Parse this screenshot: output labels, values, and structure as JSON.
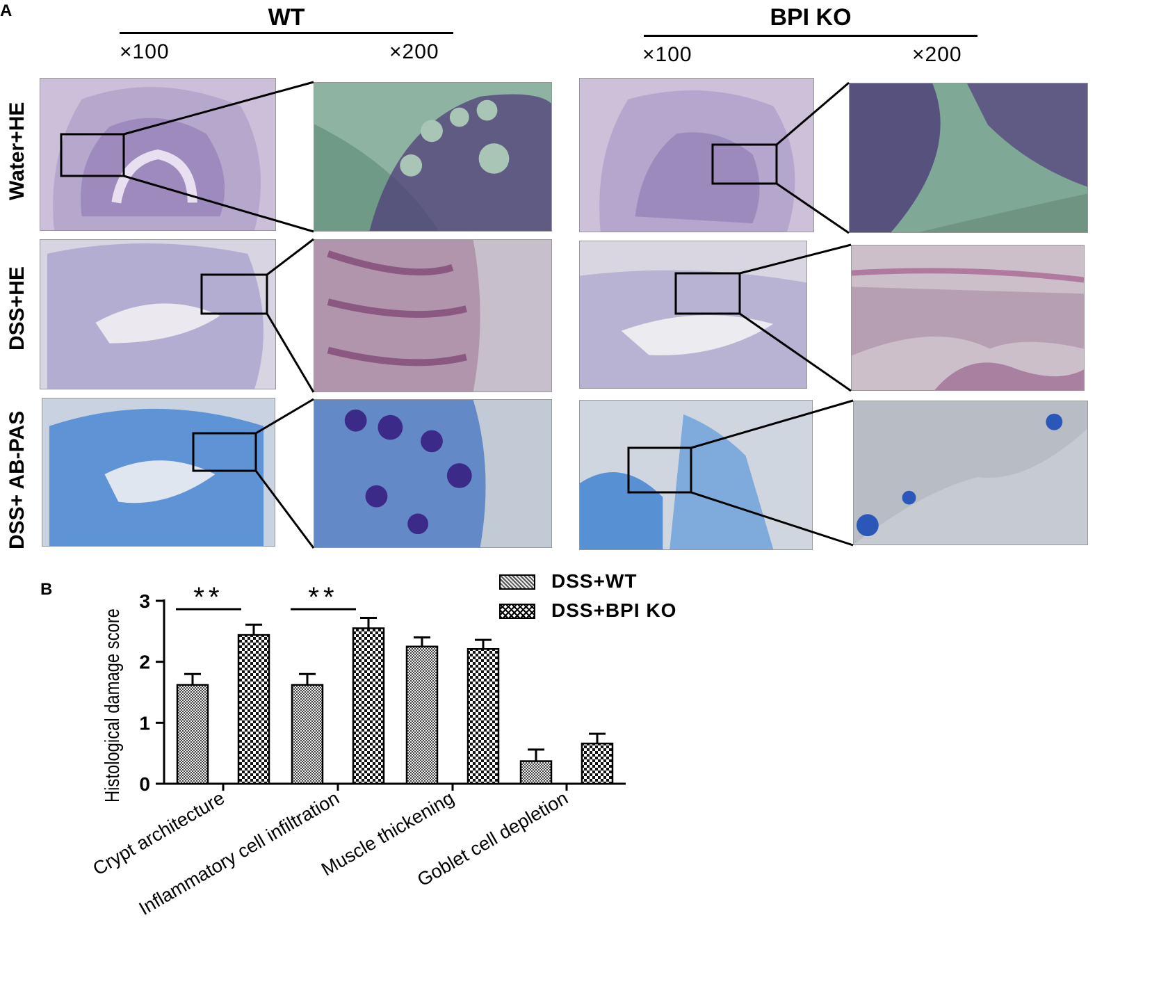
{
  "figure": {
    "panel_a_label": "A",
    "panel_b_label": "B",
    "groups": [
      {
        "title": "WT",
        "mag_low": "×100",
        "mag_high": "×200"
      },
      {
        "title": "BPI KO",
        "mag_low": "×100",
        "mag_high": "×200"
      }
    ],
    "rows": [
      "Water+HE",
      "DSS+HE",
      "DSS+ AB-PAS"
    ],
    "colors": {
      "he_low": "#c8bcd8",
      "he_high": "#8fae9c",
      "dss_he": "#d4cfe0",
      "abpas": "#3f7fd0",
      "tissue_purple": "#6a4f93",
      "tissue_blue": "#2f6fc4"
    }
  },
  "chart_data": {
    "type": "bar",
    "ylabel": "Histological damage score",
    "ylim": [
      0,
      3
    ],
    "yticks": [
      0,
      1,
      2,
      3
    ],
    "categories": [
      "Crypt architecture",
      "Inflammatory cell infiltration",
      "Muscle thickening",
      "Goblet cell depletion"
    ],
    "series": [
      {
        "name": "DSS+WT",
        "values": [
          1.62,
          1.62,
          2.25,
          0.37
        ],
        "errors": [
          0.18,
          0.18,
          0.15,
          0.19
        ]
      },
      {
        "name": "DSS+BPI KO",
        "values": [
          2.44,
          2.55,
          2.21,
          0.66
        ],
        "errors": [
          0.17,
          0.17,
          0.15,
          0.16
        ]
      }
    ],
    "significance": [
      {
        "category": "Crypt architecture",
        "label": "**"
      },
      {
        "category": "Inflammatory cell infiltration",
        "label": "**"
      }
    ],
    "legend_position": "top-right"
  }
}
